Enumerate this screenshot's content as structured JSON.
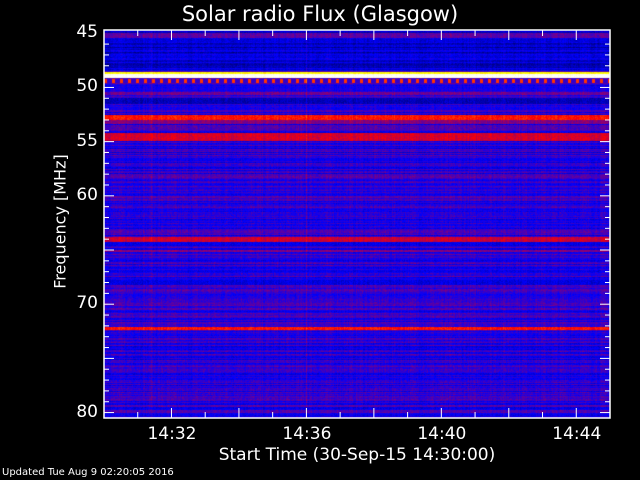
{
  "chart_data": {
    "type": "heatmap",
    "title": "Solar radio Flux (Glasgow)",
    "xlabel": "Start Time (30-Sep-15 14:30:00)",
    "ylabel": "Frequency [MHz]",
    "x_range_minutes": [
      "14:30",
      "14:45"
    ],
    "ylim": [
      44.7,
      80.5
    ],
    "y_axis_inverted": true,
    "x_ticks": [
      "14:32",
      "14:36",
      "14:40",
      "14:44"
    ],
    "x_tick_minutes": [
      2,
      6,
      10,
      14
    ],
    "y_ticks": [
      45,
      50,
      55,
      60,
      70,
      80
    ],
    "colormap": [
      "#000000",
      "#0000ff",
      "#ff0000",
      "#ffff00",
      "#ffffff"
    ],
    "background_level": 0.28,
    "bands": [
      {
        "from": 45.0,
        "to": 45.4,
        "level": 0.34
      },
      {
        "from": 48.6,
        "to": 48.8,
        "level": 0.75
      },
      {
        "from": 48.8,
        "to": 49.1,
        "level": 1.0
      },
      {
        "from": 49.2,
        "to": 49.6,
        "level": 0.55,
        "pulsed": true
      },
      {
        "from": 50.4,
        "to": 50.7,
        "level": 0.36
      },
      {
        "from": 51.0,
        "to": 51.5,
        "level": 0.18
      },
      {
        "from": 52.5,
        "to": 53.0,
        "level": 0.52
      },
      {
        "from": 53.0,
        "to": 53.4,
        "level": 0.38
      },
      {
        "from": 54.2,
        "to": 54.9,
        "level": 0.46
      },
      {
        "from": 63.8,
        "to": 64.3,
        "level": 0.45
      },
      {
        "from": 65.0,
        "to": 65.2,
        "level": 0.38
      },
      {
        "from": 67.8,
        "to": 68.2,
        "level": 0.22
      },
      {
        "from": 72.1,
        "to": 72.4,
        "level": 0.52
      }
    ],
    "vertical_streaks_minutes": [
      1.4,
      6.0
    ]
  },
  "footer": {
    "updated": "Updated Tue Aug  9 02:20:05 2016"
  }
}
